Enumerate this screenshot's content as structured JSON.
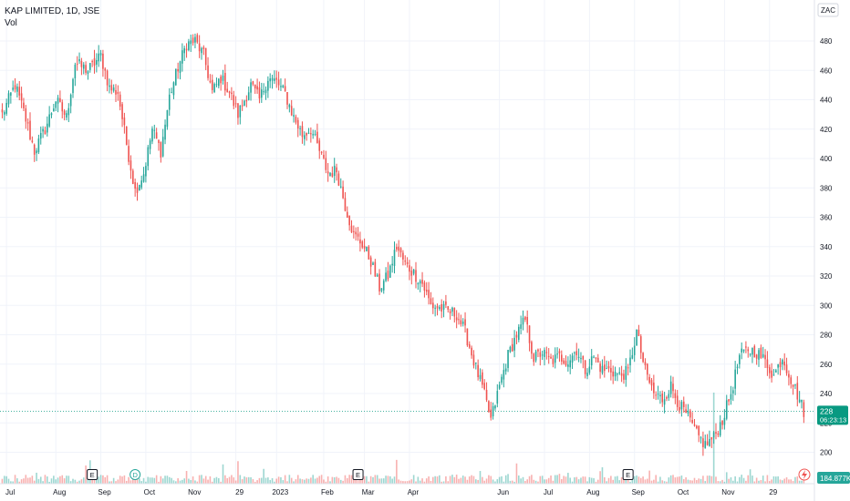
{
  "chart_data": {
    "type": "candlestick",
    "title": "KAP LIMITED, 1D, JSE",
    "indicator_label": "Vol",
    "currency_label": "ZAC",
    "last_price": "228",
    "countdown": "06:23:13",
    "volume_value": "184.877K",
    "ylim": [
      190,
      500
    ],
    "y_ticks": [
      200,
      220,
      240,
      260,
      280,
      300,
      320,
      340,
      360,
      380,
      400,
      420,
      440,
      460,
      480
    ],
    "x_ticks": [
      "Jul",
      "Aug",
      "Sep",
      "Oct",
      "Nov",
      "29",
      "2023",
      "Feb",
      "Mar",
      "Apr",
      "Jun",
      "Jul",
      "Aug",
      "Sep",
      "Oct",
      "Nov",
      "29"
    ],
    "x_tick_index": [
      2,
      25,
      46,
      67,
      88,
      109,
      128,
      150,
      169,
      190,
      232,
      253,
      274,
      295,
      316,
      337,
      358
    ],
    "events": [
      {
        "label": "E",
        "index": 42
      },
      {
        "label": "D",
        "index": 62
      },
      {
        "label": "E",
        "index": 166
      },
      {
        "label": "E",
        "index": 292
      }
    ],
    "colors": {
      "up": "#26a69a",
      "down": "#ef5350",
      "last": "#089981",
      "grid": "#f0f3fa",
      "text": "#131722"
    },
    "anchors": [
      [
        0,
        430
      ],
      [
        6,
        450
      ],
      [
        10,
        432
      ],
      [
        15,
        405
      ],
      [
        20,
        420
      ],
      [
        25,
        440
      ],
      [
        30,
        428
      ],
      [
        34,
        465
      ],
      [
        40,
        460
      ],
      [
        46,
        470
      ],
      [
        50,
        448
      ],
      [
        54,
        445
      ],
      [
        58,
        410
      ],
      [
        62,
        378
      ],
      [
        66,
        390
      ],
      [
        70,
        420
      ],
      [
        74,
        405
      ],
      [
        78,
        442
      ],
      [
        82,
        462
      ],
      [
        86,
        478
      ],
      [
        90,
        480
      ],
      [
        94,
        470
      ],
      [
        98,
        445
      ],
      [
        102,
        455
      ],
      [
        106,
        445
      ],
      [
        110,
        430
      ],
      [
        116,
        450
      ],
      [
        120,
        440
      ],
      [
        124,
        455
      ],
      [
        128,
        452
      ],
      [
        132,
        444
      ],
      [
        136,
        428
      ],
      [
        140,
        416
      ],
      [
        144,
        420
      ],
      [
        148,
        405
      ],
      [
        152,
        390
      ],
      [
        156,
        392
      ],
      [
        160,
        368
      ],
      [
        164,
        348
      ],
      [
        168,
        342
      ],
      [
        172,
        330
      ],
      [
        176,
        312
      ],
      [
        180,
        320
      ],
      [
        184,
        340
      ],
      [
        188,
        328
      ],
      [
        192,
        322
      ],
      [
        196,
        315
      ],
      [
        200,
        300
      ],
      [
        204,
        298
      ],
      [
        208,
        296
      ],
      [
        212,
        294
      ],
      [
        216,
        282
      ],
      [
        220,
        262
      ],
      [
        224,
        244
      ],
      [
        228,
        222
      ],
      [
        232,
        245
      ],
      [
        236,
        266
      ],
      [
        240,
        280
      ],
      [
        244,
        290
      ],
      [
        248,
        264
      ],
      [
        252,
        268
      ],
      [
        256,
        262
      ],
      [
        260,
        265
      ],
      [
        264,
        262
      ],
      [
        268,
        270
      ],
      [
        272,
        256
      ],
      [
        276,
        265
      ],
      [
        280,
        256
      ],
      [
        284,
        256
      ],
      [
        288,
        252
      ],
      [
        292,
        255
      ],
      [
        296,
        282
      ],
      [
        300,
        255
      ],
      [
        304,
        240
      ],
      [
        308,
        236
      ],
      [
        312,
        245
      ],
      [
        316,
        232
      ],
      [
        320,
        224
      ],
      [
        324,
        212
      ],
      [
        328,
        205
      ],
      [
        332,
        210
      ],
      [
        336,
        222
      ],
      [
        340,
        240
      ],
      [
        344,
        265
      ],
      [
        348,
        270
      ],
      [
        352,
        268
      ],
      [
        356,
        262
      ],
      [
        360,
        252
      ],
      [
        364,
        265
      ],
      [
        368,
        250
      ],
      [
        372,
        236
      ],
      [
        374,
        228
      ]
    ]
  }
}
